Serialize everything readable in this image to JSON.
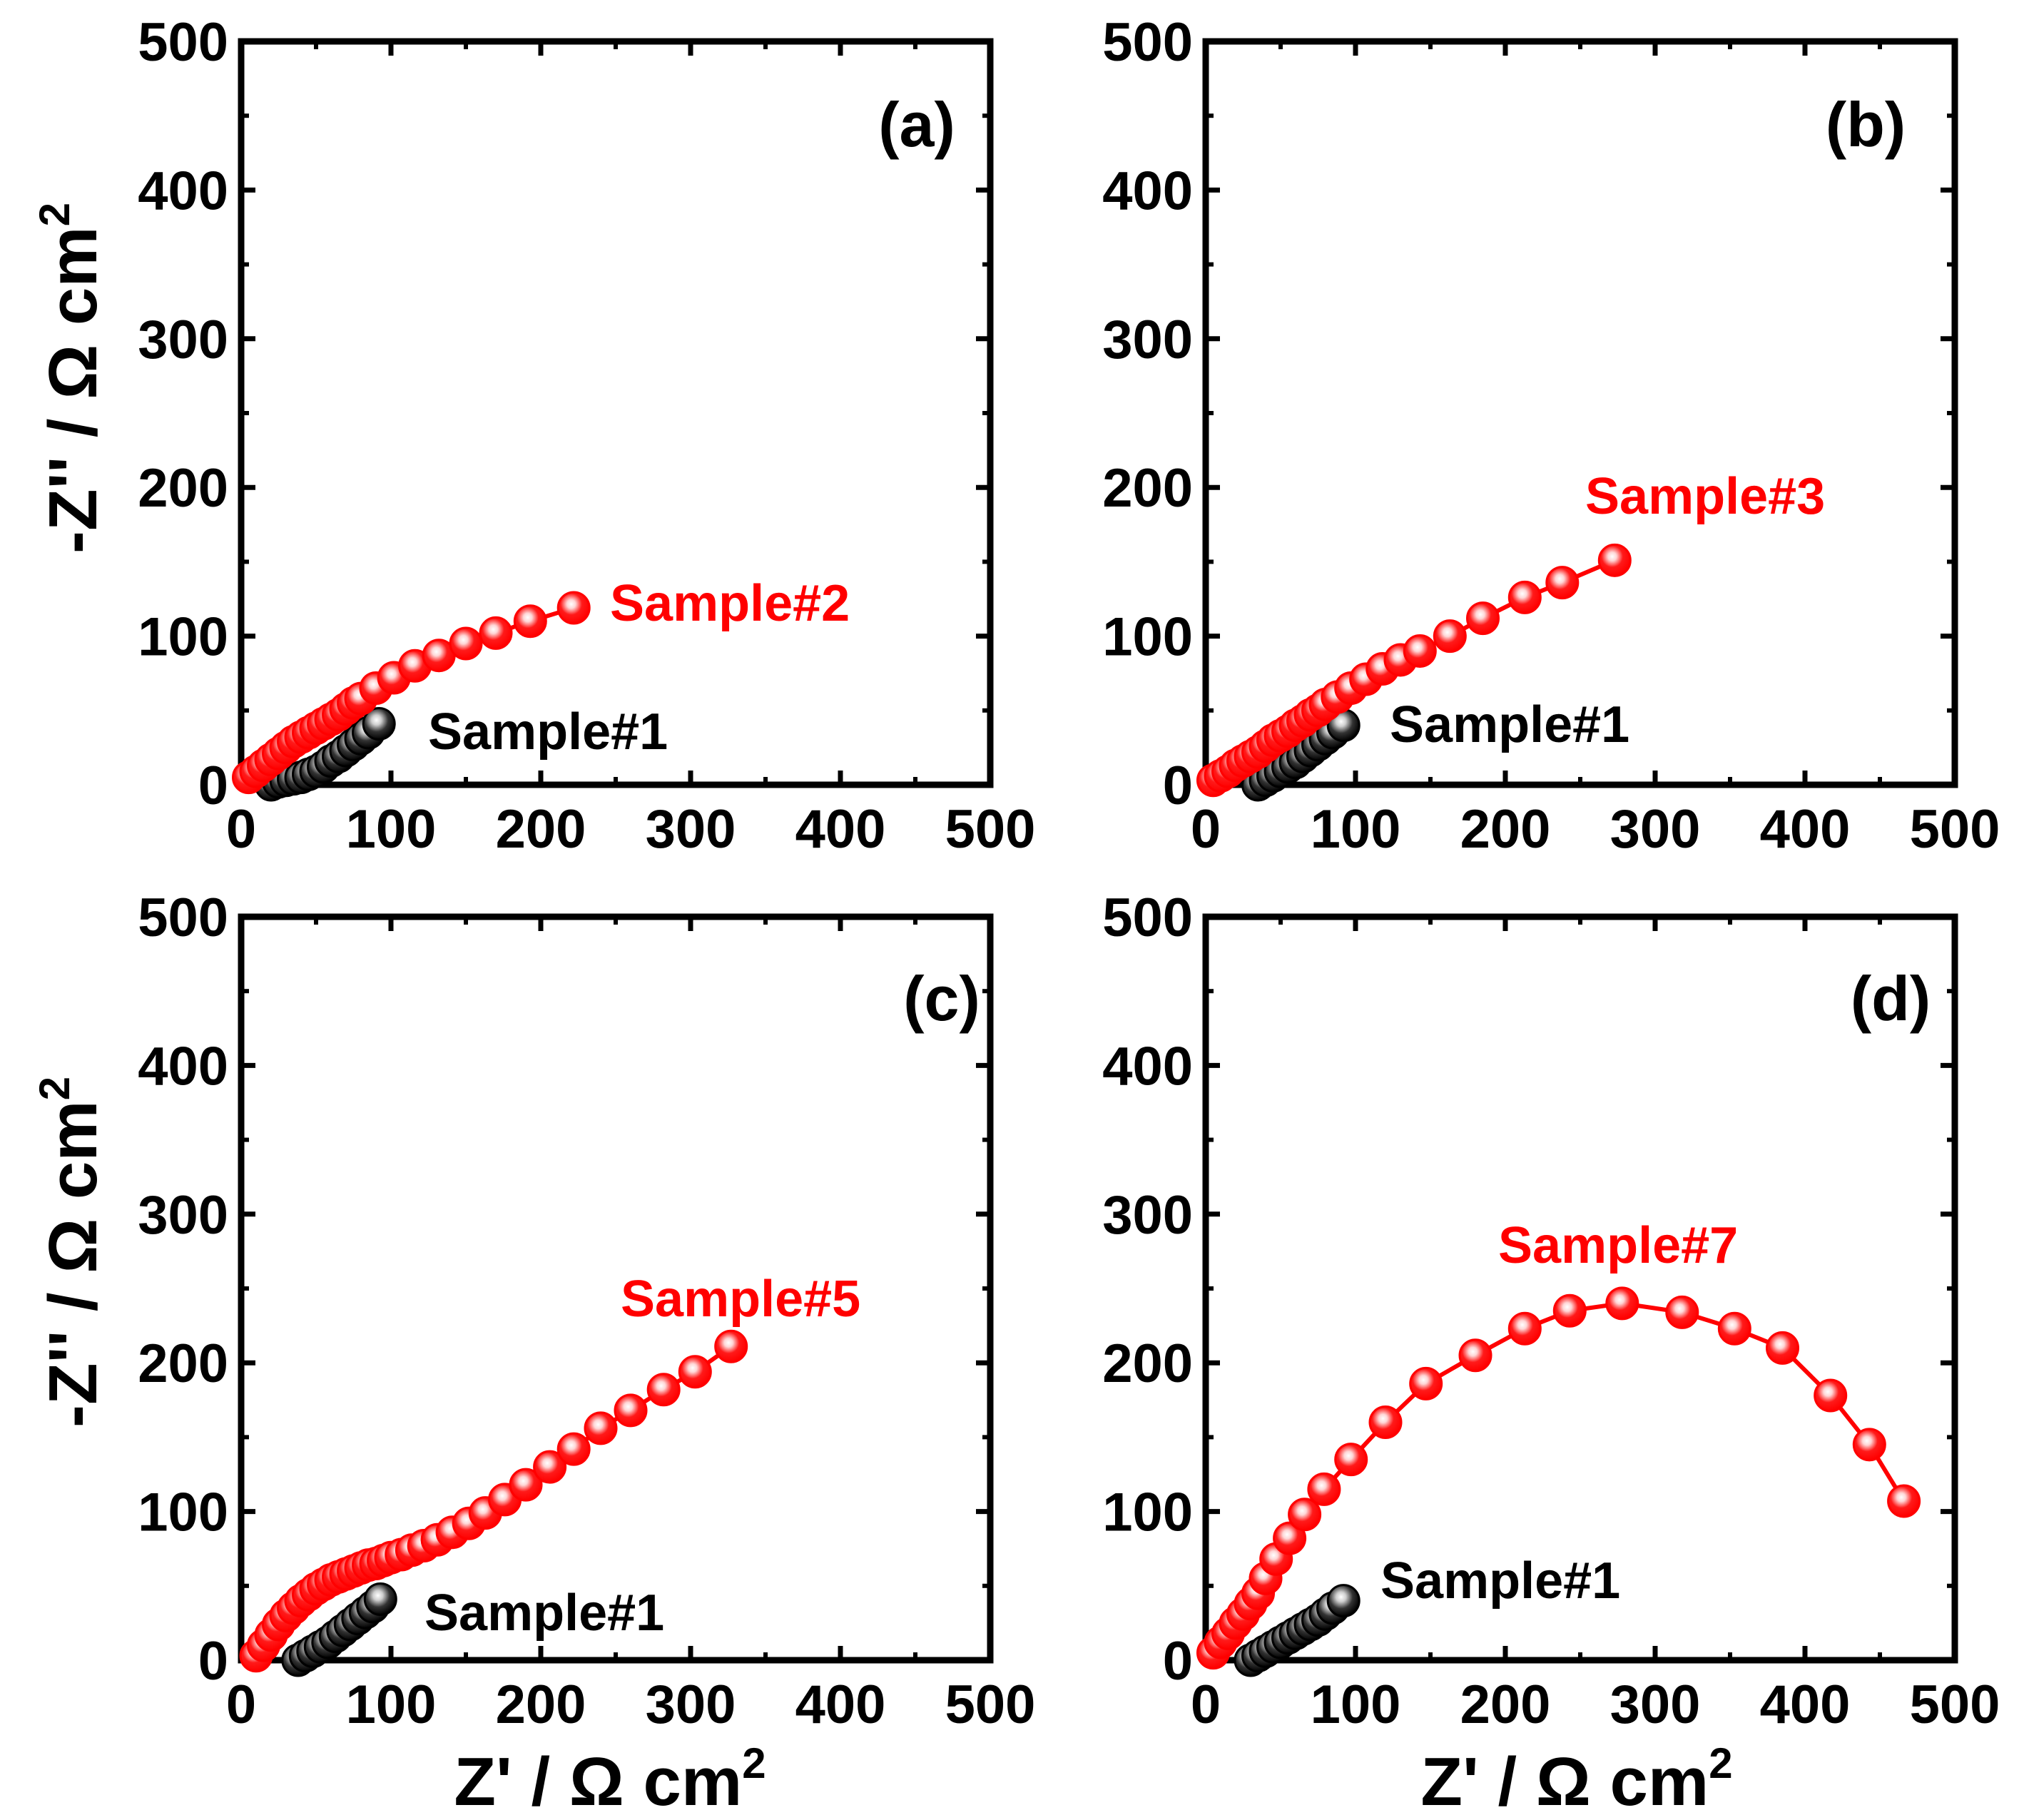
{
  "figure": {
    "y_axis_label_main": "-Z'' / Ω cm",
    "y_axis_label_sup": "2",
    "x_axis_label_main": "Z' / Ω cm",
    "x_axis_label_sup": "2"
  },
  "colors": {
    "reference": "#000000",
    "sample": "#ff0000",
    "axes": "#000000"
  },
  "chart_data": [
    {
      "type": "scatter",
      "panel": "(a)",
      "xlabel": "Z' / Ω cm2",
      "ylabel": "-Z'' / Ω cm2",
      "xlim": [
        0,
        500
      ],
      "ylim": [
        0,
        500
      ],
      "xticks": [
        "0",
        "100",
        "200",
        "300",
        "400",
        "500"
      ],
      "yticks": [
        "0",
        "100",
        "200",
        "300",
        "400",
        "500"
      ],
      "series": [
        {
          "name": "Sample#1",
          "color": "#000000",
          "x": [
            20,
            25,
            30,
            35,
            40,
            45,
            50,
            55,
            60,
            65,
            70,
            75,
            80,
            85,
            92
          ],
          "y": [
            0,
            2,
            3,
            4,
            5,
            7,
            9,
            12,
            16,
            19,
            23,
            27,
            31,
            35,
            41
          ]
        },
        {
          "name": "Sample#2",
          "color": "#ff0000",
          "x": [
            5,
            10,
            15,
            20,
            25,
            30,
            35,
            40,
            45,
            50,
            55,
            60,
            65,
            70,
            75,
            80,
            90,
            102,
            116,
            132,
            150,
            170,
            193,
            222
          ],
          "y": [
            5,
            9,
            13,
            17,
            21,
            25,
            29,
            32,
            35,
            38,
            41,
            44,
            47,
            51,
            55,
            58,
            65,
            72,
            80,
            87,
            95,
            102,
            110,
            119
          ]
        }
      ]
    },
    {
      "type": "scatter",
      "panel": "(b)",
      "xlabel": "Z' / Ω cm2",
      "ylabel": "-Z'' / Ω cm2",
      "xlim": [
        0,
        500
      ],
      "ylim": [
        0,
        500
      ],
      "xticks": [
        "0",
        "100",
        "200",
        "300",
        "400",
        "500"
      ],
      "yticks": [
        "0",
        "100",
        "200",
        "300",
        "400",
        "500"
      ],
      "series": [
        {
          "name": "Sample#1",
          "color": "#000000",
          "x": [
            35,
            40,
            45,
            50,
            55,
            60,
            65,
            70,
            75,
            80,
            85,
            92
          ],
          "y": [
            0,
            3,
            6,
            9,
            12,
            15,
            19,
            23,
            27,
            31,
            35,
            40
          ]
        },
        {
          "name": "Sample#3",
          "color": "#ff0000",
          "x": [
            5,
            10,
            15,
            20,
            25,
            30,
            35,
            40,
            45,
            50,
            55,
            60,
            65,
            70,
            75,
            80,
            88,
            97,
            107,
            118,
            130,
            143,
            163,
            185,
            213,
            238,
            273
          ],
          "y": [
            3,
            6,
            9,
            13,
            16,
            19,
            22,
            26,
            30,
            33,
            36,
            40,
            43,
            47,
            50,
            54,
            59,
            65,
            71,
            78,
            84,
            90,
            100,
            112,
            126,
            136,
            151
          ]
        }
      ]
    },
    {
      "type": "scatter",
      "panel": "(c)",
      "xlabel": "Z' / Ω cm2",
      "ylabel": "-Z'' / Ω cm2",
      "xlim": [
        0,
        500
      ],
      "ylim": [
        0,
        500
      ],
      "xticks": [
        "0",
        "100",
        "200",
        "300",
        "400",
        "500"
      ],
      "yticks": [
        "0",
        "100",
        "200",
        "300",
        "400",
        "500"
      ],
      "series": [
        {
          "name": "Sample#1",
          "color": "#000000",
          "x": [
            38,
            43,
            48,
            53,
            58,
            63,
            68,
            73,
            78,
            83,
            88,
            93
          ],
          "y": [
            0,
            3,
            6,
            9,
            12,
            16,
            20,
            24,
            28,
            32,
            36,
            41
          ]
        },
        {
          "name": "Sample#5",
          "color": "#ff0000",
          "x": [
            10,
            15,
            20,
            25,
            30,
            35,
            40,
            45,
            50,
            55,
            60,
            65,
            70,
            75,
            80,
            85,
            90,
            95,
            100,
            107,
            114,
            122,
            131,
            141,
            152,
            163,
            176,
            190,
            206,
            222,
            240,
            260,
            282,
            303,
            327
          ],
          "y": [
            3,
            10,
            17,
            24,
            30,
            35,
            40,
            44,
            48,
            51,
            54,
            56,
            58,
            60,
            62,
            64,
            65,
            67,
            69,
            71,
            74,
            77,
            81,
            86,
            92,
            99,
            108,
            118,
            130,
            142,
            156,
            168,
            182,
            194,
            211
          ]
        }
      ]
    },
    {
      "type": "scatter",
      "panel": "(d)",
      "xlabel": "Z' / Ω cm2",
      "ylabel": "-Z'' / Ω cm2",
      "xlim": [
        0,
        500
      ],
      "ylim": [
        0,
        500
      ],
      "xticks": [
        "0",
        "100",
        "200",
        "300",
        "400",
        "500"
      ],
      "yticks": [
        "0",
        "100",
        "200",
        "300",
        "400",
        "500"
      ],
      "series": [
        {
          "name": "Sample#1",
          "color": "#000000",
          "x": [
            30,
            35,
            40,
            45,
            50,
            55,
            60,
            65,
            70,
            75,
            80,
            85,
            92
          ],
          "y": [
            0,
            3,
            6,
            9,
            12,
            15,
            18,
            21,
            24,
            27,
            31,
            35,
            40
          ]
        },
        {
          "name": "Sample#7",
          "color": "#ff0000",
          "x": [
            5,
            10,
            15,
            20,
            25,
            30,
            35,
            40,
            47,
            56,
            66,
            79,
            97,
            120,
            147,
            180,
            213,
            243,
            278,
            318,
            353,
            385,
            417,
            443,
            466
          ],
          "y": [
            5,
            12,
            18,
            25,
            31,
            38,
            45,
            55,
            68,
            82,
            98,
            115,
            135,
            160,
            186,
            205,
            223,
            235,
            240,
            234,
            223,
            210,
            178,
            145,
            107
          ]
        }
      ]
    }
  ],
  "panels": [
    {
      "label": "(a)",
      "reference_label": "Sample#1",
      "sample_label": "Sample#2"
    },
    {
      "label": "(b)",
      "reference_label": "Sample#1",
      "sample_label": "Sample#3"
    },
    {
      "label": "(c)",
      "reference_label": "Sample#1",
      "sample_label": "Sample#5"
    },
    {
      "label": "(d)",
      "reference_label": "Sample#1",
      "sample_label": "Sample#7"
    }
  ]
}
